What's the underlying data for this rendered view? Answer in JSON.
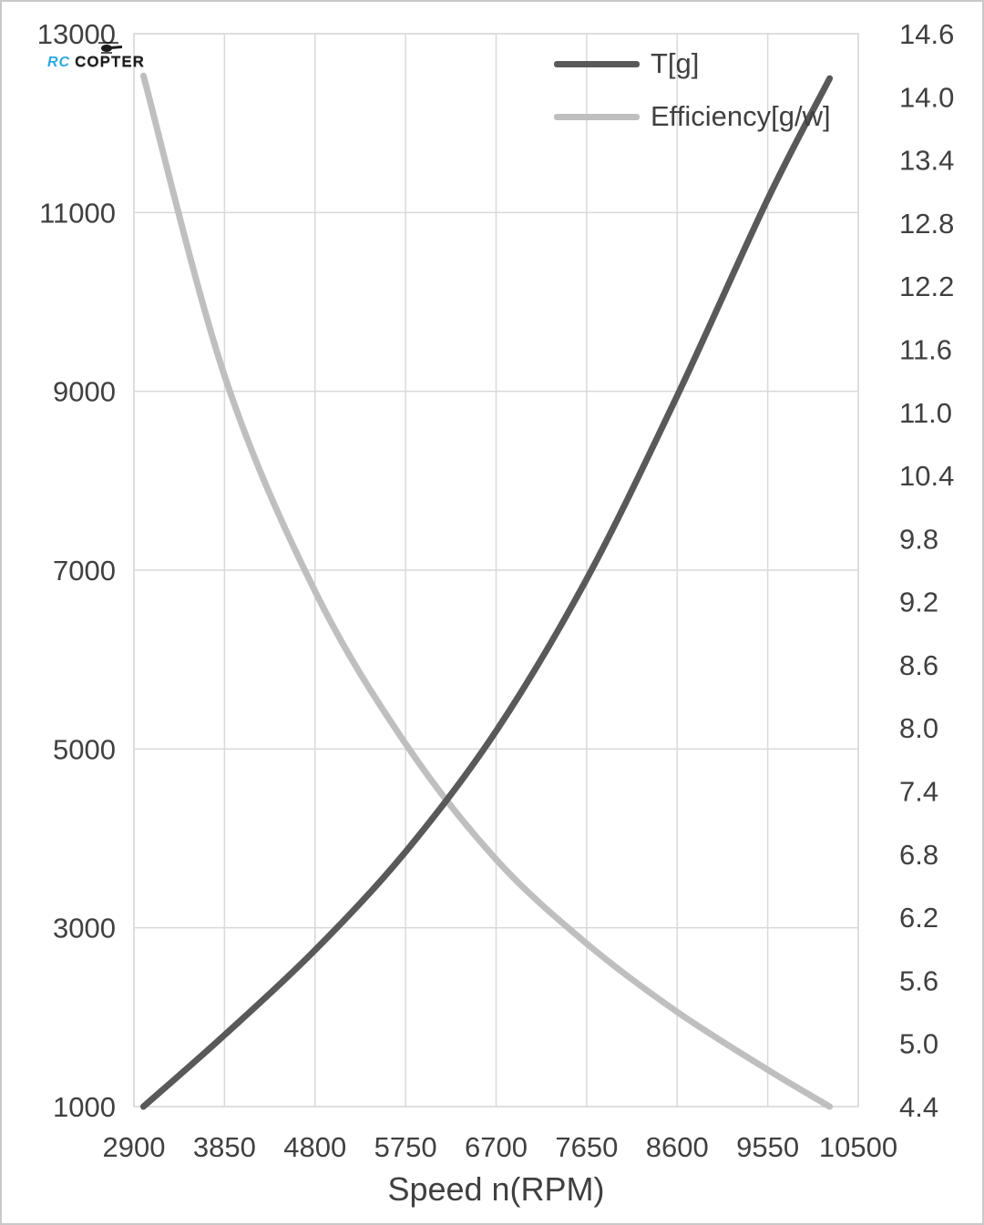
{
  "watermark": {
    "rc": "RC",
    "copter": "COPTER"
  },
  "chart_data": {
    "type": "line",
    "x": [
      3000,
      3850,
      4800,
      5750,
      6700,
      7650,
      8600,
      9550,
      10200
    ],
    "series": [
      {
        "name": "T[g]",
        "axis": "left",
        "color": "#595959",
        "values": [
          1000,
          1800,
          2750,
          3850,
          5200,
          6900,
          8950,
          11150,
          12500
        ]
      },
      {
        "name": "Efficiency[g/w]",
        "axis": "right",
        "color": "#bfbfbf",
        "values": [
          14.2,
          11.35,
          9.3,
          7.85,
          6.75,
          5.95,
          5.3,
          4.75,
          4.4
        ]
      }
    ],
    "xlabel": "Speed n(RPM)",
    "x_axis": {
      "min": 2900,
      "max": 10500,
      "ticks": [
        "2900",
        "3850",
        "4800",
        "5750",
        "6700",
        "7650",
        "8600",
        "9550",
        "10500"
      ]
    },
    "left_axis": {
      "min": 1000,
      "max": 13000,
      "ticks": [
        "1000",
        "3000",
        "5000",
        "7000",
        "9000",
        "11000",
        "13000"
      ]
    },
    "right_axis": {
      "min": 4.4,
      "max": 14.6,
      "ticks": [
        "4.4",
        "5.0",
        "5.6",
        "6.2",
        "6.8",
        "7.4",
        "8.0",
        "8.6",
        "9.2",
        "9.8",
        "10.4",
        "11.0",
        "11.6",
        "12.2",
        "12.8",
        "13.4",
        "14.0",
        "14.6"
      ]
    },
    "grid": true,
    "legend_position": "top-right",
    "colors": {
      "grid": "#d9d9d9",
      "text": "#404040",
      "background": "#ffffff"
    }
  }
}
